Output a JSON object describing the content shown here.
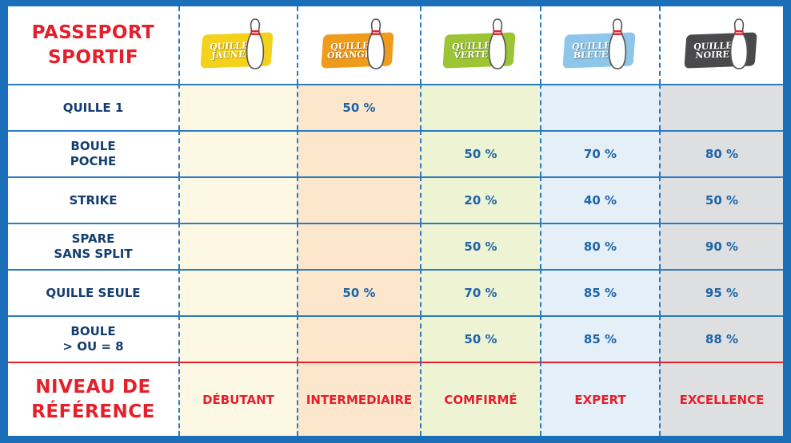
{
  "title": "PASSEPORT\nSPORTIF",
  "footer_title": "NIVEAU DE\nRÉFÉRENCE",
  "columns": [
    {
      "label": "QUILLE\nJAUNE",
      "color": "#f4d11a",
      "level": "DÉBUTANT"
    },
    {
      "label": "QUILLE\nORANGE",
      "color": "#ef9b1c",
      "level": "INTERMEDIAIRE"
    },
    {
      "label": "QUILLE\nVERTE",
      "color": "#9cc434",
      "level": "COMFIRMÉ"
    },
    {
      "label": "QUILLE\nBLEUE",
      "color": "#8ec6ea",
      "level": "EXPERT"
    },
    {
      "label": "QUILLE\nNOIRE",
      "color": "#4a4a4c",
      "level": "EXCELLENCE"
    }
  ],
  "rows": [
    {
      "label": "QUILLE 1",
      "values": [
        "",
        "50 %",
        "",
        "",
        ""
      ]
    },
    {
      "label": "BOULE\nPOCHE",
      "values": [
        "",
        "",
        "50 %",
        "70 %",
        "80 %"
      ]
    },
    {
      "label": "STRIKE",
      "values": [
        "",
        "",
        "20 %",
        "40 %",
        "50 %"
      ]
    },
    {
      "label": "SPARE\nSANS SPLIT",
      "values": [
        "",
        "",
        "50 %",
        "80 %",
        "90 %"
      ]
    },
    {
      "label": "QUILLE SEULE",
      "values": [
        "",
        "50 %",
        "70 %",
        "85 %",
        "95 %"
      ]
    },
    {
      "label": "BOULE\n> OU = 8",
      "values": [
        "",
        "",
        "50 %",
        "85 %",
        "88 %"
      ]
    }
  ],
  "colors": {
    "frame": "#1a6fb8",
    "accent_red": "#e3202c",
    "value_blue": "#1d64a8",
    "label_navy": "#143e6e"
  },
  "icons": {
    "pin": "bowling-pin-icon"
  }
}
